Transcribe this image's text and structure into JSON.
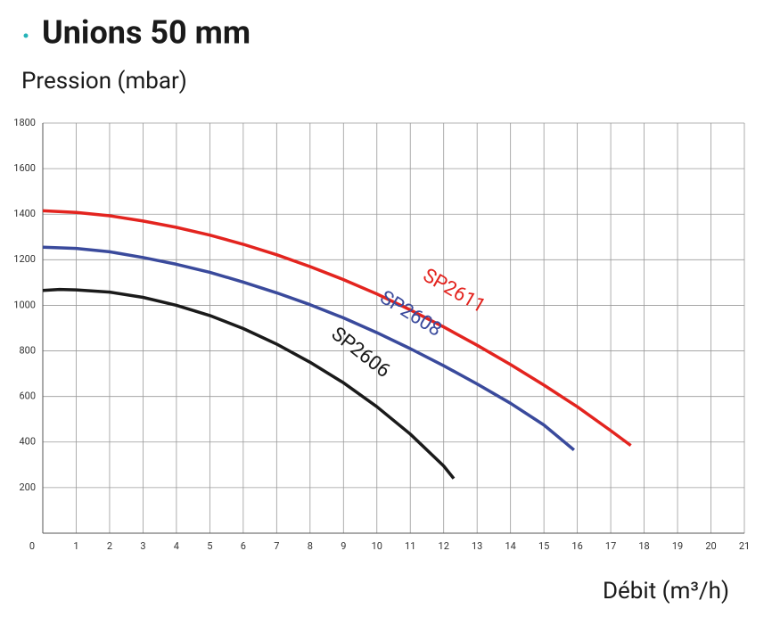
{
  "chart_data": {
    "type": "line",
    "title": "Unions 50 mm",
    "y_label": "Pression (mbar)",
    "x_label": "Débit (m³/h)",
    "xlim": [
      0,
      21
    ],
    "ylim": [
      0,
      1800
    ],
    "xticks": [
      0,
      1,
      2,
      3,
      4,
      5,
      6,
      7,
      8,
      9,
      10,
      11,
      12,
      13,
      14,
      15,
      16,
      17,
      18,
      19,
      20,
      21
    ],
    "yticks": [
      200,
      400,
      600,
      800,
      1000,
      1200,
      1400,
      1600,
      1800
    ],
    "grid": true,
    "series": [
      {
        "name": "SP2611",
        "color": "#e3241f",
        "x": [
          0,
          1,
          2,
          3,
          4,
          5,
          6,
          7,
          8,
          9,
          10,
          11,
          12,
          13,
          14,
          15,
          16,
          17,
          17.6
        ],
        "values": [
          1415,
          1408,
          1393,
          1370,
          1342,
          1308,
          1268,
          1222,
          1170,
          1113,
          1050,
          980,
          905,
          825,
          740,
          650,
          555,
          450,
          385
        ]
      },
      {
        "name": "SP2608",
        "color": "#3a4a9c",
        "x": [
          0,
          1,
          2,
          3,
          4,
          5,
          6,
          7,
          8,
          9,
          10,
          11,
          12,
          13,
          14,
          15,
          15.9
        ],
        "values": [
          1255,
          1250,
          1235,
          1210,
          1180,
          1145,
          1102,
          1055,
          1003,
          945,
          880,
          810,
          735,
          655,
          570,
          475,
          365
        ]
      },
      {
        "name": "SP2606",
        "color": "#1a1a1a",
        "x": [
          0,
          0.5,
          1,
          2,
          3,
          4,
          5,
          6,
          7,
          8,
          9,
          10,
          11,
          12,
          12.3
        ],
        "values": [
          1065,
          1070,
          1068,
          1058,
          1035,
          1000,
          955,
          898,
          830,
          750,
          660,
          555,
          435,
          295,
          240
        ]
      }
    ]
  }
}
